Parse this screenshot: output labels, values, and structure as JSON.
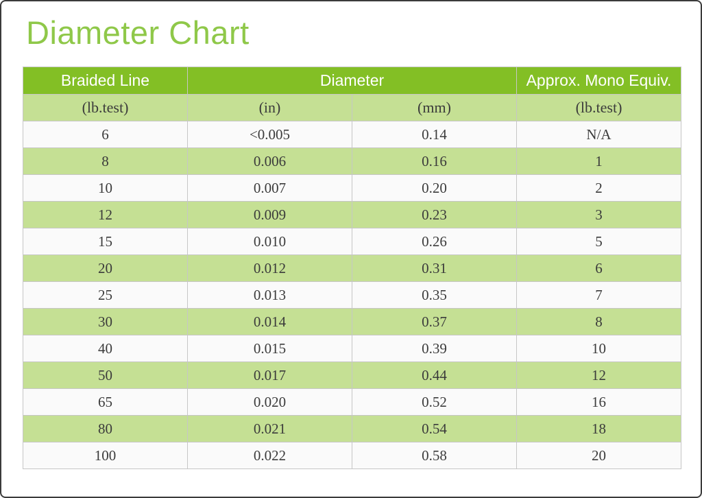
{
  "page": {
    "title": "Diameter Chart"
  },
  "colors": {
    "title_green": "#8FC849",
    "header_bg": "#83BF25",
    "header_text": "#FFFFFF",
    "row_green": "#C5E094",
    "row_white": "#FAFAFA",
    "border_gray": "#C6C6C6",
    "text_dark": "#3B3B3B",
    "frame_border": "#3B3B3B"
  },
  "chart_data": {
    "type": "table",
    "title": "Diameter Chart",
    "header_groups": [
      {
        "label": "Braided Line",
        "colspan": 1
      },
      {
        "label": "Diameter",
        "colspan": 2
      },
      {
        "label": "Approx. Mono Equiv.",
        "colspan": 1
      }
    ],
    "column_units": [
      "(lb.test)",
      "(in)",
      "(mm)",
      "(lb.test)"
    ],
    "rows": [
      [
        "6",
        "<0.005",
        "0.14",
        "N/A"
      ],
      [
        "8",
        "0.006",
        "0.16",
        "1"
      ],
      [
        "10",
        "0.007",
        "0.20",
        "2"
      ],
      [
        "12",
        "0.009",
        "0.23",
        "3"
      ],
      [
        "15",
        "0.010",
        "0.26",
        "5"
      ],
      [
        "20",
        "0.012",
        "0.31",
        "6"
      ],
      [
        "25",
        "0.013",
        "0.35",
        "7"
      ],
      [
        "30",
        "0.014",
        "0.37",
        "8"
      ],
      [
        "40",
        "0.015",
        "0.39",
        "10"
      ],
      [
        "50",
        "0.017",
        "0.44",
        "12"
      ],
      [
        "65",
        "0.020",
        "0.52",
        "16"
      ],
      [
        "80",
        "0.021",
        "0.54",
        "18"
      ],
      [
        "100",
        "0.022",
        "0.58",
        "20"
      ]
    ],
    "layout_hints": {
      "row_striping": "first data row white, then alternating light green",
      "grid": "all cells bordered light gray",
      "alignment": "all cells centered"
    }
  }
}
